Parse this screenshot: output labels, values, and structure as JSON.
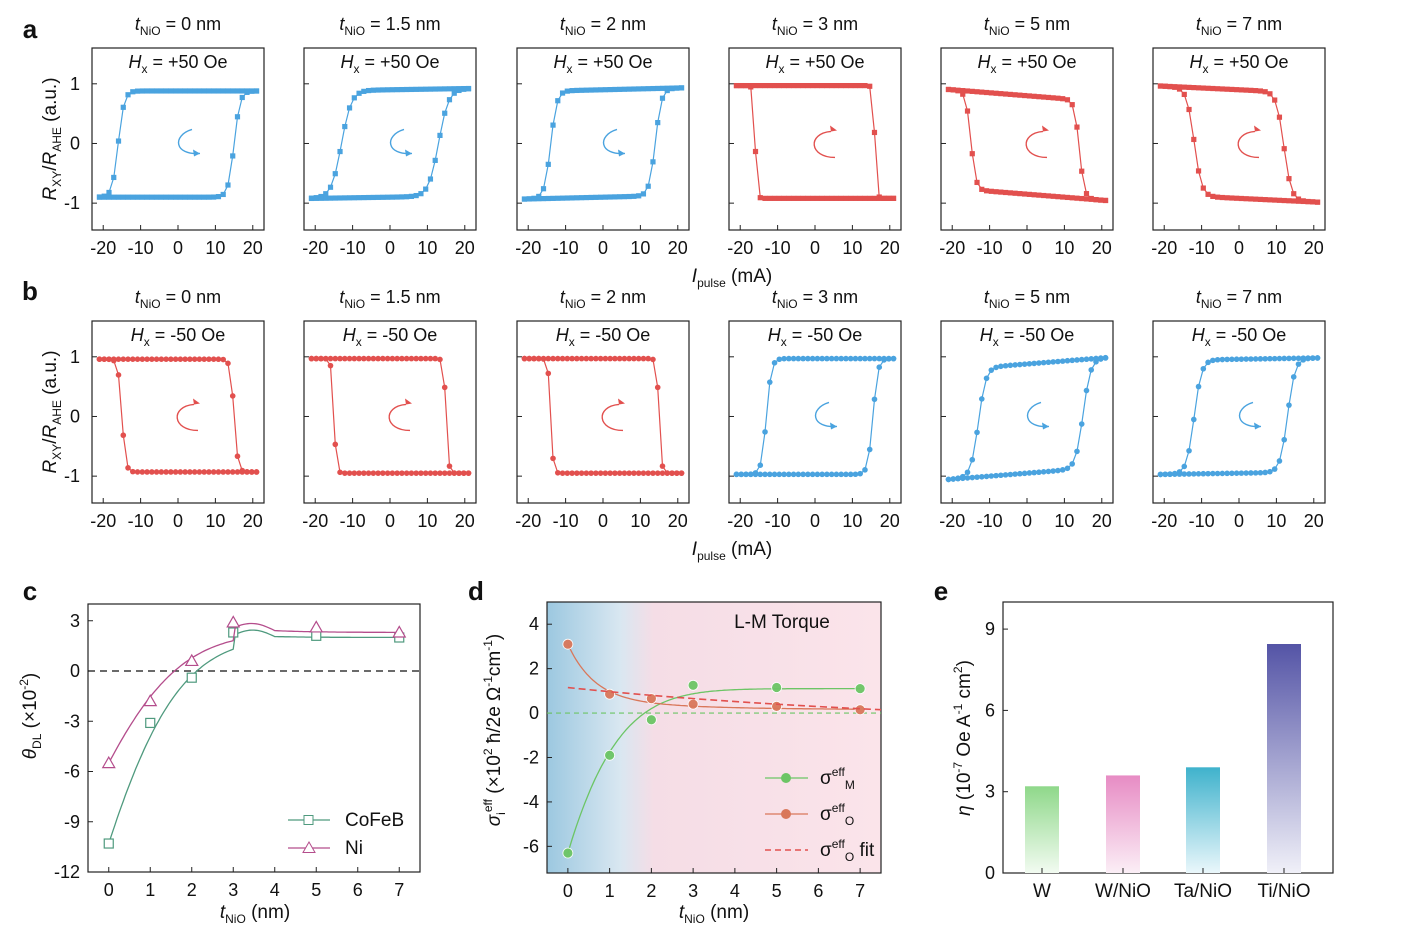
{
  "panel_labels": [
    "a",
    "b",
    "c",
    "d",
    "e"
  ],
  "colors": {
    "blue": "#4aa3df",
    "red": "#e2504e",
    "green": "#6cc565",
    "orange": "#d9775a",
    "magenta": "#b44d8c",
    "teal": "#4f9a7e",
    "purple": "#5a5aa8",
    "pink": "#e07eb6",
    "cyan": "#43b4cc"
  },
  "chart_data": [
    {
      "id": "a",
      "type": "line",
      "loop_type": "hysteresis",
      "field_label": {
        "sym": "H",
        "sub": "x",
        "rest": " = +50 Oe"
      },
      "thickness_labels": [
        "0 nm",
        "1.5 nm",
        "2 nm",
        "3 nm",
        "5 nm",
        "7 nm"
      ],
      "thickness_sym": {
        "sym": "t",
        "sub": "NiO"
      },
      "ylabel": {
        "r": "R",
        "rsub": "XY",
        "slash": "/",
        "r2": "R",
        "r2sub": "AHE",
        "unit": " (a.u.)"
      },
      "xlabel": {
        "sym": "I",
        "sub": "pulse",
        "unit": " (mA)"
      },
      "yticks": [
        "1",
        "0",
        "-1"
      ],
      "xticks": [
        "-20",
        "-10",
        "0",
        "10",
        "20"
      ],
      "xlim": [
        -23,
        23
      ],
      "ylim": [
        -1.45,
        1.6
      ],
      "subplots": [
        {
          "color": "blue",
          "dir": "ccw",
          "low": -0.9,
          "high": 0.88,
          "up_sw": 15,
          "down_sw": -16,
          "w": 2.4,
          "tilt": 0.0
        },
        {
          "color": "blue",
          "dir": "ccw",
          "low": -0.9,
          "high": 0.9,
          "up_sw": 13,
          "down_sw": -13,
          "w": 4,
          "tilt": 0.02
        },
        {
          "color": "blue",
          "dir": "ccw",
          "low": -0.9,
          "high": 0.9,
          "up_sw": 14,
          "down_sw": -14,
          "w": 2.5,
          "tilt": 0.03
        },
        {
          "color": "red",
          "dir": "cw",
          "low": -0.92,
          "high": 0.97,
          "up_sw": -16,
          "down_sw": 16,
          "w": 0.8,
          "tilt": 0.0
        },
        {
          "color": "red",
          "dir": "cw",
          "low": -0.85,
          "high": 0.8,
          "up_sw": -15,
          "down_sw": 14,
          "w": 2,
          "tilt": -0.1
        },
        {
          "color": "red",
          "dir": "cw",
          "low": -0.92,
          "high": 0.9,
          "up_sw": -12,
          "down_sw": 12,
          "w": 3,
          "tilt": -0.06
        }
      ]
    },
    {
      "id": "b",
      "type": "line",
      "loop_type": "hysteresis",
      "field_label": {
        "sym": "H",
        "sub": "x",
        "rest": " = -50 Oe"
      },
      "thickness_labels": [
        "0 nm",
        "1.5 nm",
        "2 nm",
        "3 nm",
        "5 nm",
        "7 nm"
      ],
      "thickness_sym": {
        "sym": "t",
        "sub": "NiO"
      },
      "ylabel": {
        "r": "R",
        "rsub": "XY",
        "slash": "/",
        "r2": "R",
        "r2sub": "AHE",
        "unit": " (a.u.)"
      },
      "xlabel": {
        "sym": "I",
        "sub": "pulse",
        "unit": " (mA)"
      },
      "yticks": [
        "1",
        "0",
        "-1"
      ],
      "xticks": [
        "-20",
        "-10",
        "0",
        "10",
        "20"
      ],
      "xlim": [
        -23,
        23
      ],
      "ylim": [
        -1.45,
        1.6
      ],
      "subplots": [
        {
          "color": "red",
          "dir": "cw",
          "low": -0.93,
          "high": 0.96,
          "up_sw": -15,
          "down_sw": 15,
          "w": 1.5,
          "tilt": 0.0
        },
        {
          "color": "red",
          "dir": "cw",
          "low": -0.95,
          "high": 0.97,
          "up_sw": -15,
          "down_sw": 15,
          "w": 1,
          "tilt": 0.0
        },
        {
          "color": "red",
          "dir": "cw",
          "low": -0.95,
          "high": 0.97,
          "up_sw": -14,
          "down_sw": 15,
          "w": 1,
          "tilt": 0.0
        },
        {
          "color": "blue",
          "dir": "ccw",
          "low": -0.97,
          "high": 0.97,
          "up_sw": 15.5,
          "down_sw": -13,
          "w": 2,
          "tilt": 0.0
        },
        {
          "color": "blue",
          "dir": "ccw",
          "low": -0.95,
          "high": 0.88,
          "up_sw": 15,
          "down_sw": -13,
          "w": 3,
          "tilt": 0.1
        },
        {
          "color": "blue",
          "dir": "ccw",
          "low": -0.95,
          "high": 0.96,
          "up_sw": 13,
          "down_sw": -12,
          "w": 3,
          "tilt": 0.02
        }
      ]
    },
    {
      "id": "c",
      "type": "line",
      "xlabel": {
        "sym": "t",
        "sub": "NiO",
        "unit": " (nm)"
      },
      "ylabel": {
        "sym": "θ",
        "sub": "DL",
        "unit": " (×10",
        "sup": "-2",
        "close": ")"
      },
      "xticks": [
        "0",
        "1",
        "2",
        "3",
        "4",
        "5",
        "6",
        "7"
      ],
      "yticks": [
        "3",
        "0",
        "-3",
        "-6",
        "-9",
        "-12"
      ],
      "xlim": [
        -0.5,
        7.5
      ],
      "ylim": [
        -12,
        4
      ],
      "series": [
        {
          "name": "CoFeB",
          "color": "teal",
          "marker": "square",
          "x": [
            0,
            1,
            2,
            3,
            5,
            7
          ],
          "y": [
            -10.3,
            -3.1,
            -0.4,
            2.3,
            2.1,
            2.0
          ]
        },
        {
          "name": "Ni",
          "color": "magenta",
          "marker": "triangle",
          "x": [
            0,
            1,
            2,
            3,
            5,
            7
          ],
          "y": [
            -5.5,
            -1.8,
            0.6,
            2.9,
            2.6,
            2.3
          ]
        }
      ]
    },
    {
      "id": "d",
      "type": "line",
      "annotation": "L-M Torque",
      "xlabel": {
        "sym": "t",
        "sub": "NiO",
        "unit": " (nm)"
      },
      "ylabel": {
        "sym": "σ",
        "sub": "i",
        "sup": "eff",
        "unit": " (×10",
        "sup2": "2",
        "rest": " ħ/2e Ω",
        "sup3": "-1",
        "rest2": "cm",
        "sup4": "-1",
        "close": ")"
      },
      "xticks": [
        "0",
        "1",
        "2",
        "3",
        "4",
        "5",
        "6",
        "7"
      ],
      "yticks": [
        "4",
        "2",
        "0",
        "-2",
        "-4",
        "-6"
      ],
      "xlim": [
        -0.5,
        7.5
      ],
      "ylim": [
        -7.2,
        5
      ],
      "series": [
        {
          "name": "σ",
          "sub": "M",
          "sup": "eff",
          "color": "green",
          "marker": "circle",
          "x": [
            0,
            1,
            2,
            3,
            5,
            7
          ],
          "y": [
            -6.3,
            -1.9,
            -0.3,
            1.25,
            1.15,
            1.1
          ]
        },
        {
          "name": "σ",
          "sub": "O",
          "sup": "eff",
          "color": "orange",
          "marker": "circle",
          "x": [
            0,
            1,
            2,
            3,
            5,
            7
          ],
          "y": [
            3.1,
            0.85,
            0.65,
            0.4,
            0.3,
            0.15
          ]
        },
        {
          "name": "σ",
          "sub": "O",
          "sup": "eff",
          "suffix": " fit",
          "color": "red",
          "marker": "dashed",
          "x": [
            0,
            7
          ],
          "y": [
            1.15,
            0.15
          ]
        }
      ]
    },
    {
      "id": "e",
      "type": "bar",
      "categories": [
        "W",
        "W/NiO",
        "Ta/NiO",
        "Ti/NiO"
      ],
      "values": [
        3.2,
        3.6,
        3.9,
        8.45
      ],
      "bar_colors": [
        "green",
        "pink",
        "cyan",
        "purple"
      ],
      "ylabel": {
        "sym": "η",
        "unit": " (10",
        "sup": "-7",
        "rest": " Oe A",
        "sup2": "-1",
        "rest2": " cm",
        "sup3": "2",
        "close": ")"
      },
      "yticks": [
        "0",
        "3",
        "6",
        "9"
      ],
      "ylim": [
        0,
        10
      ]
    }
  ]
}
